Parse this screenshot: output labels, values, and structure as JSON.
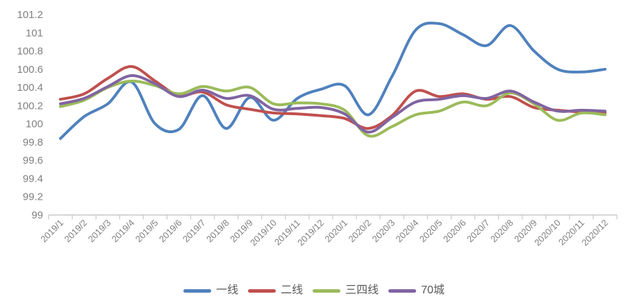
{
  "chart_data": {
    "type": "line",
    "title": "",
    "categories": [
      "2019/1",
      "2019/2",
      "2019/3",
      "2019/4",
      "2019/5",
      "2019/6",
      "2019/7",
      "2019/8",
      "2019/9",
      "2019/10",
      "2019/11",
      "2019/12",
      "2020/1",
      "2020/2",
      "2020/3",
      "2020/4",
      "2020/5",
      "2020/6",
      "2020/7",
      "2020/8",
      "2020/9",
      "2020/10",
      "2020/11",
      "2020/12"
    ],
    "series": [
      {
        "name": "一线",
        "color": "#4F81BD",
        "values": [
          99.84,
          100.08,
          100.22,
          100.46,
          100.0,
          99.94,
          100.31,
          99.95,
          100.29,
          100.04,
          100.28,
          100.38,
          100.42,
          100.1,
          100.52,
          101.03,
          101.1,
          100.98,
          100.86,
          101.08,
          100.8,
          100.6,
          100.57,
          100.6
        ]
      },
      {
        "name": "二线",
        "color": "#C0504D",
        "values": [
          100.27,
          100.33,
          100.5,
          100.63,
          100.47,
          100.31,
          100.35,
          100.21,
          100.16,
          100.12,
          100.11,
          100.09,
          100.06,
          99.95,
          100.09,
          100.36,
          100.3,
          100.33,
          100.27,
          100.3,
          100.18,
          100.15,
          100.13,
          100.12
        ]
      },
      {
        "name": "三四线",
        "color": "#9BBB59",
        "values": [
          100.19,
          100.26,
          100.4,
          100.47,
          100.42,
          100.33,
          100.41,
          100.36,
          100.4,
          100.22,
          100.23,
          100.22,
          100.15,
          99.87,
          99.97,
          100.1,
          100.14,
          100.24,
          100.2,
          100.34,
          100.22,
          100.04,
          100.12,
          100.1
        ]
      },
      {
        "name": "70城",
        "color": "#8064A2",
        "values": [
          100.22,
          100.28,
          100.41,
          100.53,
          100.44,
          100.3,
          100.37,
          100.28,
          100.31,
          100.16,
          100.17,
          100.18,
          100.11,
          99.91,
          100.07,
          100.24,
          100.27,
          100.31,
          100.28,
          100.36,
          100.24,
          100.14,
          100.15,
          100.14
        ]
      }
    ],
    "ylim": [
      99,
      101.2
    ],
    "y_ticks": [
      "99",
      "99.2",
      "99.4",
      "99.6",
      "99.8",
      "100",
      "100.2",
      "100.4",
      "100.6",
      "100.8",
      "101",
      "101.2"
    ],
    "xlabel": "",
    "ylabel": "",
    "grid": false,
    "legend_position": "bottom",
    "smooth_lines": true,
    "x_label_rotation_deg": -45,
    "colors": {
      "axis": "#C8C8C8",
      "tick_label": "#7F7F7F",
      "legend_text": "#595959",
      "background": "#FFFFFF"
    }
  }
}
